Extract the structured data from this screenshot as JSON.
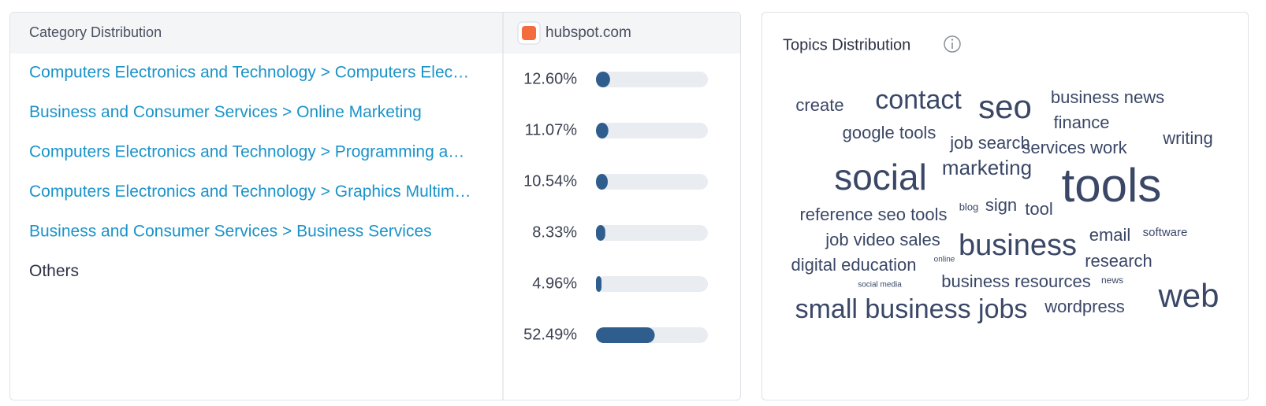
{
  "category_panel": {
    "title": "Category Distribution",
    "site": "hubspot.com",
    "rows": [
      {
        "name": "Computers Electronics and Technology > Computers Elec…",
        "share": 12.6,
        "share_label": "12.60%"
      },
      {
        "name": "Business and Consumer Services > Online Marketing",
        "share": 11.07,
        "share_label": "11.07%"
      },
      {
        "name": "Computers Electronics and Technology > Programming a…",
        "share": 10.54,
        "share_label": "10.54%"
      },
      {
        "name": "Computers Electronics and Technology > Graphics Multim…",
        "share": 8.33,
        "share_label": "8.33%"
      },
      {
        "name": "Business and Consumer Services > Business Services",
        "share": 4.96,
        "share_label": "4.96%"
      },
      {
        "name": "Others",
        "share": 52.49,
        "share_label": "52.49%"
      }
    ]
  },
  "topics_panel": {
    "title": "Topics Distribution",
    "words": [
      "create",
      "contact",
      "seo",
      "business news",
      "finance",
      "google tools",
      "job search",
      "services work",
      "writing",
      "marketing",
      "social",
      "tools",
      "reference seo tools",
      "blog",
      "sign",
      "tool",
      "job video sales",
      "business",
      "email",
      "software",
      "digital education",
      "online",
      "research",
      "social media",
      "business resources",
      "news",
      "web",
      "small business jobs",
      "wordpress"
    ]
  }
}
